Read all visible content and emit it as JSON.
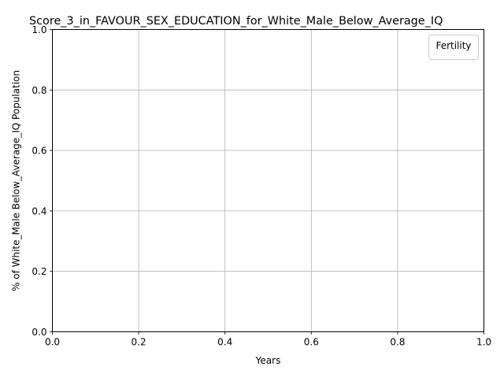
{
  "chart_data": {
    "type": "line",
    "title": "Score_3_in_FAVOUR_SEX_EDUCATION_for_White_Male_Below_Average_IQ",
    "xlabel": "Years",
    "ylabel": "% of White_Male Below_Average_IQ Population",
    "xlim": [
      0.0,
      1.0
    ],
    "ylim": [
      0.0,
      1.0
    ],
    "x_ticks": [
      "0.0",
      "0.2",
      "0.4",
      "0.6",
      "0.8",
      "1.0"
    ],
    "y_ticks": [
      "0.0",
      "0.2",
      "0.4",
      "0.6",
      "0.8",
      "1.0"
    ],
    "grid": true,
    "legend": {
      "title": "Fertility",
      "placement": "upper-right",
      "entries": []
    },
    "series": []
  }
}
